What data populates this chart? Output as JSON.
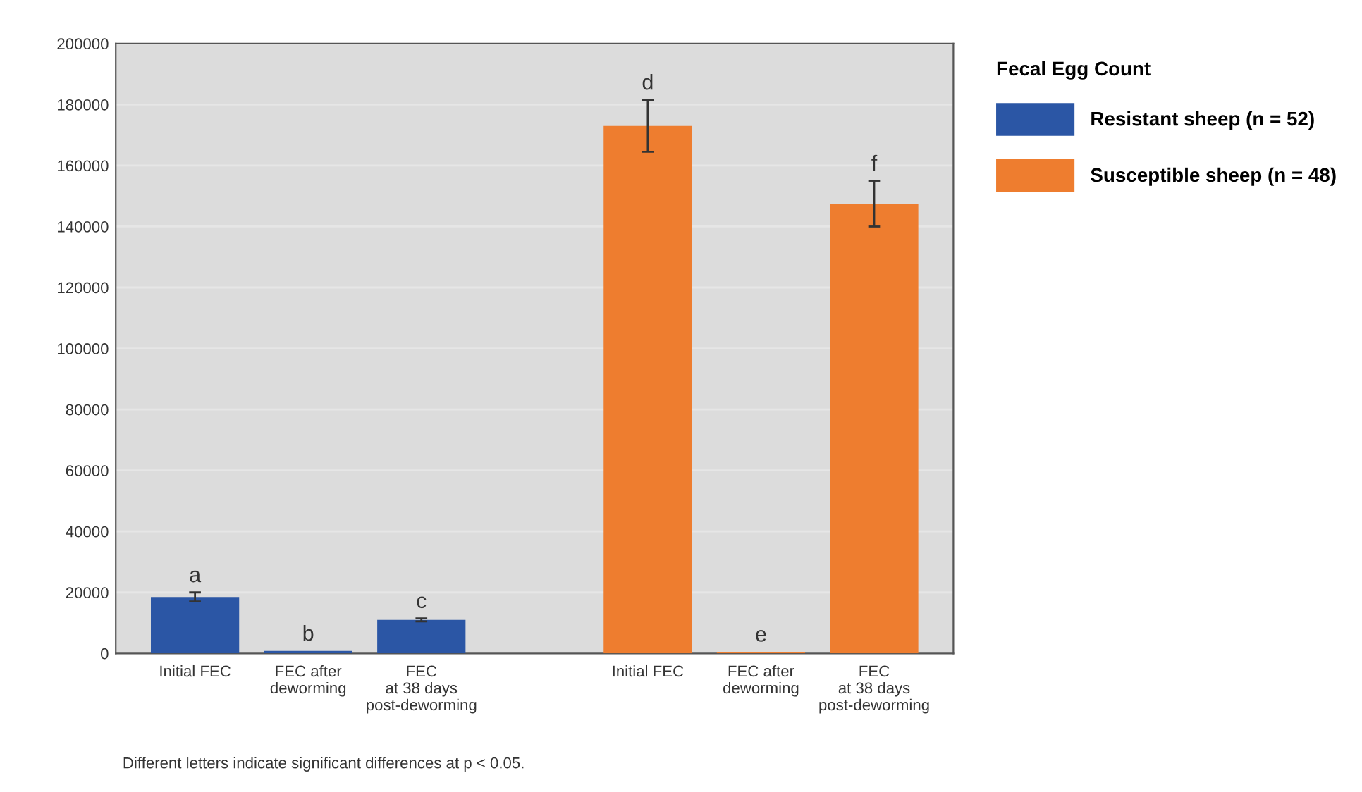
{
  "chart_data": {
    "type": "bar",
    "legend_title": "Fecal Egg Count",
    "categories": [
      "Initial FEC",
      "FEC after\ndeworming",
      "FEC\nat 38 days\npost-deworming",
      null,
      "Initial FEC",
      "FEC after\ndeworming",
      "FEC\nat 38 days\npost-deworming"
    ],
    "series": [
      {
        "name": "Resistant sheep (n = 52)",
        "color": "#2b56a5",
        "values": [
          18500,
          800,
          11000,
          null,
          null,
          null,
          null
        ],
        "errors": [
          1500,
          null,
          500,
          null,
          null,
          null,
          null
        ],
        "value_labels": [
          "a",
          "b",
          "c",
          null,
          null,
          null,
          null
        ]
      },
      {
        "name": "Susceptible sheep (n = 48)",
        "color": "#ee7d2f",
        "values": [
          null,
          null,
          null,
          null,
          173000,
          500,
          147500
        ],
        "errors": [
          null,
          null,
          null,
          null,
          8500,
          null,
          7500
        ],
        "value_labels": [
          null,
          null,
          null,
          null,
          "d",
          "e",
          "f"
        ]
      }
    ],
    "ylim": [
      0,
      200000
    ],
    "yticks": [
      0,
      20000,
      40000,
      60000,
      80000,
      100000,
      120000,
      140000,
      160000,
      180000,
      200000
    ],
    "grid": "y",
    "legend": "right",
    "annotations": [
      "Different letters indicate significant differences at p < 0.05."
    ]
  }
}
